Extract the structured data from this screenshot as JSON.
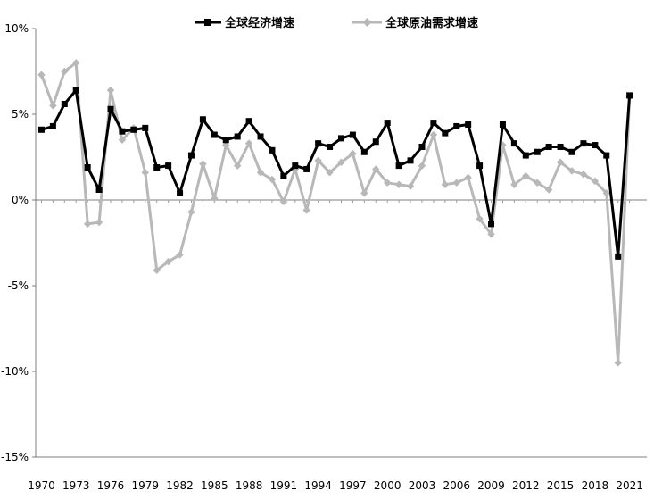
{
  "chart_data": {
    "type": "line",
    "title": "",
    "xlabel": "",
    "ylabel": "",
    "ylim": [
      -15,
      10
    ],
    "y_ticks": [
      "10%",
      "5%",
      "0%",
      "-5%",
      "-10%",
      "-15%"
    ],
    "y_tick_values": [
      10,
      5,
      0,
      -5,
      -10,
      -15
    ],
    "x_tick_labels": [
      "1970",
      "1973",
      "1976",
      "1979",
      "1982",
      "1985",
      "1988",
      "1991",
      "1994",
      "1997",
      "2000",
      "2003",
      "2006",
      "2009",
      "2012",
      "2015",
      "2018",
      "2021"
    ],
    "x_tick_values": [
      1970,
      1973,
      1976,
      1979,
      1982,
      1985,
      1988,
      1991,
      1994,
      1997,
      2000,
      2003,
      2006,
      2009,
      2012,
      2015,
      2018,
      2021
    ],
    "x": [
      1970,
      1971,
      1972,
      1973,
      1974,
      1975,
      1976,
      1977,
      1978,
      1979,
      1980,
      1981,
      1982,
      1983,
      1984,
      1985,
      1986,
      1987,
      1988,
      1989,
      1990,
      1991,
      1992,
      1993,
      1994,
      1995,
      1996,
      1997,
      1998,
      1999,
      2000,
      2001,
      2002,
      2003,
      2004,
      2005,
      2006,
      2007,
      2008,
      2009,
      2010,
      2011,
      2012,
      2013,
      2014,
      2015,
      2016,
      2017,
      2018,
      2019,
      2020,
      2021
    ],
    "legend_position": "top",
    "series": [
      {
        "name": "全球经济增速",
        "color": "#000000",
        "marker": "square",
        "values": [
          4.1,
          4.3,
          5.6,
          6.4,
          1.9,
          0.6,
          5.3,
          4.0,
          4.1,
          4.2,
          1.9,
          2.0,
          0.4,
          2.6,
          4.7,
          3.8,
          3.5,
          3.7,
          4.6,
          3.7,
          2.9,
          1.4,
          2.0,
          1.8,
          3.3,
          3.1,
          3.6,
          3.8,
          2.8,
          3.4,
          4.5,
          2.0,
          2.3,
          3.1,
          4.5,
          3.9,
          4.3,
          4.4,
          2.0,
          -1.4,
          4.4,
          3.3,
          2.6,
          2.8,
          3.1,
          3.1,
          2.8,
          3.3,
          3.2,
          2.6,
          -3.3,
          6.1
        ]
      },
      {
        "name": "全球原油需求增速",
        "color": "#b8b8b8",
        "marker": "diamond",
        "values": [
          7.3,
          5.5,
          7.5,
          8.0,
          -1.4,
          -1.3,
          6.4,
          3.5,
          4.2,
          1.6,
          -4.1,
          -3.6,
          -3.2,
          -0.7,
          2.1,
          0.1,
          3.2,
          2.0,
          3.3,
          1.6,
          1.2,
          -0.1,
          1.8,
          -0.6,
          2.3,
          1.6,
          2.2,
          2.7,
          0.4,
          1.8,
          1.0,
          0.9,
          0.8,
          2.0,
          3.8,
          0.9,
          1.0,
          1.3,
          -1.1,
          -2.0,
          3.2,
          0.9,
          1.4,
          1.0,
          0.6,
          2.2,
          1.7,
          1.5,
          1.1,
          0.4,
          -9.5,
          6.0
        ]
      }
    ]
  }
}
